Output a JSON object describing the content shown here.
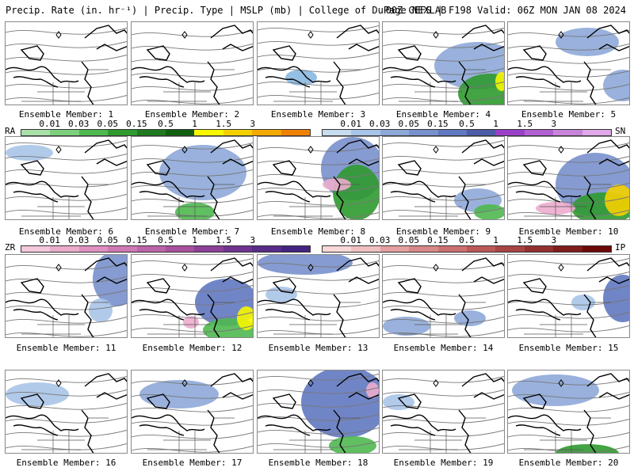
{
  "header": {
    "left": "Precip. Rate (in. hr⁻¹) | Precip. Type | MSLP (mb) | College of DuPage NEXLAB",
    "right": "00Z GEFS | F198 Valid: 06Z MON JAN 08 2024"
  },
  "members": [
    {
      "label": "Ensemble Member: 1"
    },
    {
      "label": "Ensemble Member: 2"
    },
    {
      "label": "Ensemble Member: 3"
    },
    {
      "label": "Ensemble Member: 4"
    },
    {
      "label": "Ensemble Member: 5"
    },
    {
      "label": "Ensemble Member: 6"
    },
    {
      "label": "Ensemble Member: 7"
    },
    {
      "label": "Ensemble Member: 8"
    },
    {
      "label": "Ensemble Member: 9"
    },
    {
      "label": "Ensemble Member: 10"
    },
    {
      "label": "Ensemble Member: 11"
    },
    {
      "label": "Ensemble Member: 12"
    },
    {
      "label": "Ensemble Member: 13"
    },
    {
      "label": "Ensemble Member: 14"
    },
    {
      "label": "Ensemble Member: 15"
    },
    {
      "label": "Ensemble Member: 16"
    },
    {
      "label": "Ensemble Member: 17"
    },
    {
      "label": "Ensemble Member: 18"
    },
    {
      "label": "Ensemble Member: 19"
    },
    {
      "label": "Ensemble Member: 20"
    }
  ],
  "legends": {
    "rain": {
      "type_label": "RA",
      "values": [
        "0.01",
        "0.03",
        "0.05",
        "0.15",
        "0.5",
        "1",
        "1.5",
        "3"
      ],
      "colors": [
        "#a8e0a8",
        "#7ccf7c",
        "#4fb84f",
        "#2f9a2f",
        "#1f7a1f",
        "#106010",
        "#f6f600",
        "#f5d000",
        "#f5a800",
        "#f08000"
      ]
    },
    "snow": {
      "type_label": "SN",
      "values": [
        "0.01",
        "0.03",
        "0.05",
        "0.15",
        "0.5",
        "1",
        "1.5",
        "3"
      ],
      "colors": [
        "#c8dcf0",
        "#a8c4e8",
        "#8ea8d8",
        "#7890cc",
        "#6078c0",
        "#4c5ca8",
        "#9a40c8",
        "#b060d0",
        "#c884d8",
        "#e0a8e8"
      ]
    },
    "freezing": {
      "type_label": "ZR",
      "values": [
        "0.01",
        "0.03",
        "0.05",
        "0.15",
        "0.5",
        "1",
        "1.5",
        "3"
      ],
      "colors": [
        "#f4c8dc",
        "#ecaccc",
        "#e090c0",
        "#d078b4",
        "#bc64a8",
        "#a8509c",
        "#8c4098",
        "#703490",
        "#582c88",
        "#442480"
      ]
    },
    "ice": {
      "type_label": "IP",
      "values": [
        "0.01",
        "0.03",
        "0.05",
        "0.15",
        "0.5",
        "1",
        "1.5",
        "3"
      ],
      "colors": [
        "#f8d8d8",
        "#f0c0c0",
        "#e4a0a0",
        "#d88888",
        "#cc7070",
        "#bc5858",
        "#a84444",
        "#943030",
        "#801c1c",
        "#6c0808"
      ]
    }
  }
}
